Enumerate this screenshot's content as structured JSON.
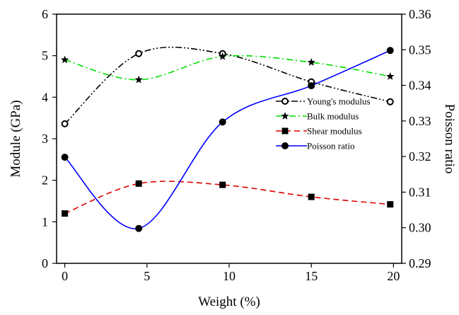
{
  "chart_data": {
    "type": "line",
    "xlabel": "Weight (%)",
    "ylabel_left": "Module (GPa)",
    "ylabel_right": "Poisson ratio",
    "xlim": [
      -0.5,
      20.5
    ],
    "ylim_left": [
      0,
      6
    ],
    "ylim_right": [
      0.29,
      0.36
    ],
    "x_ticks": [
      0,
      5,
      10,
      15,
      20
    ],
    "y_ticks_left": [
      0,
      1,
      2,
      3,
      4,
      5,
      6
    ],
    "y_ticks_right": [
      "0.29",
      "0.30",
      "0.31",
      "0.32",
      "0.33",
      "0.34",
      "0.35",
      "0.36"
    ],
    "grid": false,
    "legend_position": "center-right",
    "series": [
      {
        "name": "Young's modulus",
        "axis": "left",
        "x": [
          0,
          4.5,
          9.6,
          15,
          19.8
        ],
        "values": [
          3.36,
          5.05,
          5.05,
          4.37,
          3.89
        ],
        "color": "#000000",
        "dash": "dashdotdot",
        "marker": "hollow-circle"
      },
      {
        "name": "Bulk modulus",
        "axis": "left",
        "x": [
          0,
          4.5,
          9.6,
          15,
          19.8
        ],
        "values": [
          4.9,
          4.42,
          4.98,
          4.84,
          4.5
        ],
        "color": "#00dd00",
        "dash": "dashdot",
        "marker": "star"
      },
      {
        "name": "Shear modulus",
        "axis": "left",
        "x": [
          0,
          4.5,
          9.6,
          15,
          19.8
        ],
        "values": [
          1.2,
          1.92,
          1.89,
          1.6,
          1.42
        ],
        "color": "#e00000",
        "dash": "dash",
        "marker": "square"
      },
      {
        "name": "Poisson ratio",
        "axis": "right",
        "x": [
          0,
          4.5,
          9.6,
          15,
          19.8
        ],
        "values": [
          0.3198,
          0.2998,
          0.3297,
          0.3399,
          0.3498
        ],
        "color": "#0000ff",
        "dash": "solid",
        "marker": "filled-circle"
      }
    ]
  }
}
